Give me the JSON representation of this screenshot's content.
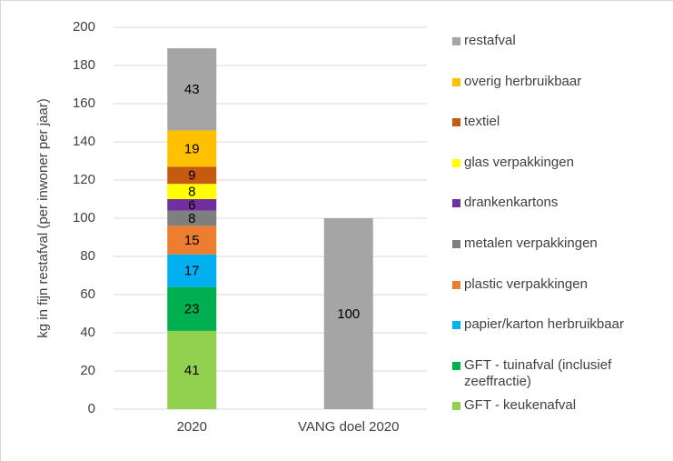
{
  "chart_data": {
    "type": "bar",
    "stacked": true,
    "y_label": "kg in fijn restafval (per inwoner per jaar)",
    "categories": [
      "2020",
      "VANG doel 2020"
    ],
    "series": [
      {
        "name": "GFT - keukenafval",
        "color": "#92d050",
        "values": [
          41,
          null
        ]
      },
      {
        "name": "GFT - tuinafval (inclusief zeeffractie)",
        "color": "#00b050",
        "values": [
          23,
          null
        ]
      },
      {
        "name": "papier/karton herbruikbaar",
        "color": "#00b0f0",
        "values": [
          17,
          null
        ]
      },
      {
        "name": "plastic verpakkingen",
        "color": "#ed7d31",
        "values": [
          15,
          null
        ]
      },
      {
        "name": "metalen verpakkingen",
        "color": "#7f7f7f",
        "values": [
          8,
          null
        ]
      },
      {
        "name": "drankenkartons",
        "color": "#7030a0",
        "values": [
          6,
          null
        ]
      },
      {
        "name": "glas verpakkingen",
        "color": "#ffff00",
        "values": [
          8,
          null
        ]
      },
      {
        "name": "textiel",
        "color": "#c55a11",
        "values": [
          9,
          null
        ]
      },
      {
        "name": "overig herbruikbaar",
        "color": "#ffc000",
        "values": [
          19,
          null
        ]
      },
      {
        "name": "restafval",
        "color": "#a5a5a5",
        "values": [
          43,
          100
        ]
      }
    ],
    "ylim": [
      0,
      200
    ],
    "yticks": [
      0,
      20,
      40,
      60,
      80,
      100,
      120,
      140,
      160,
      180,
      200
    ],
    "grid": true,
    "legend": "right"
  }
}
